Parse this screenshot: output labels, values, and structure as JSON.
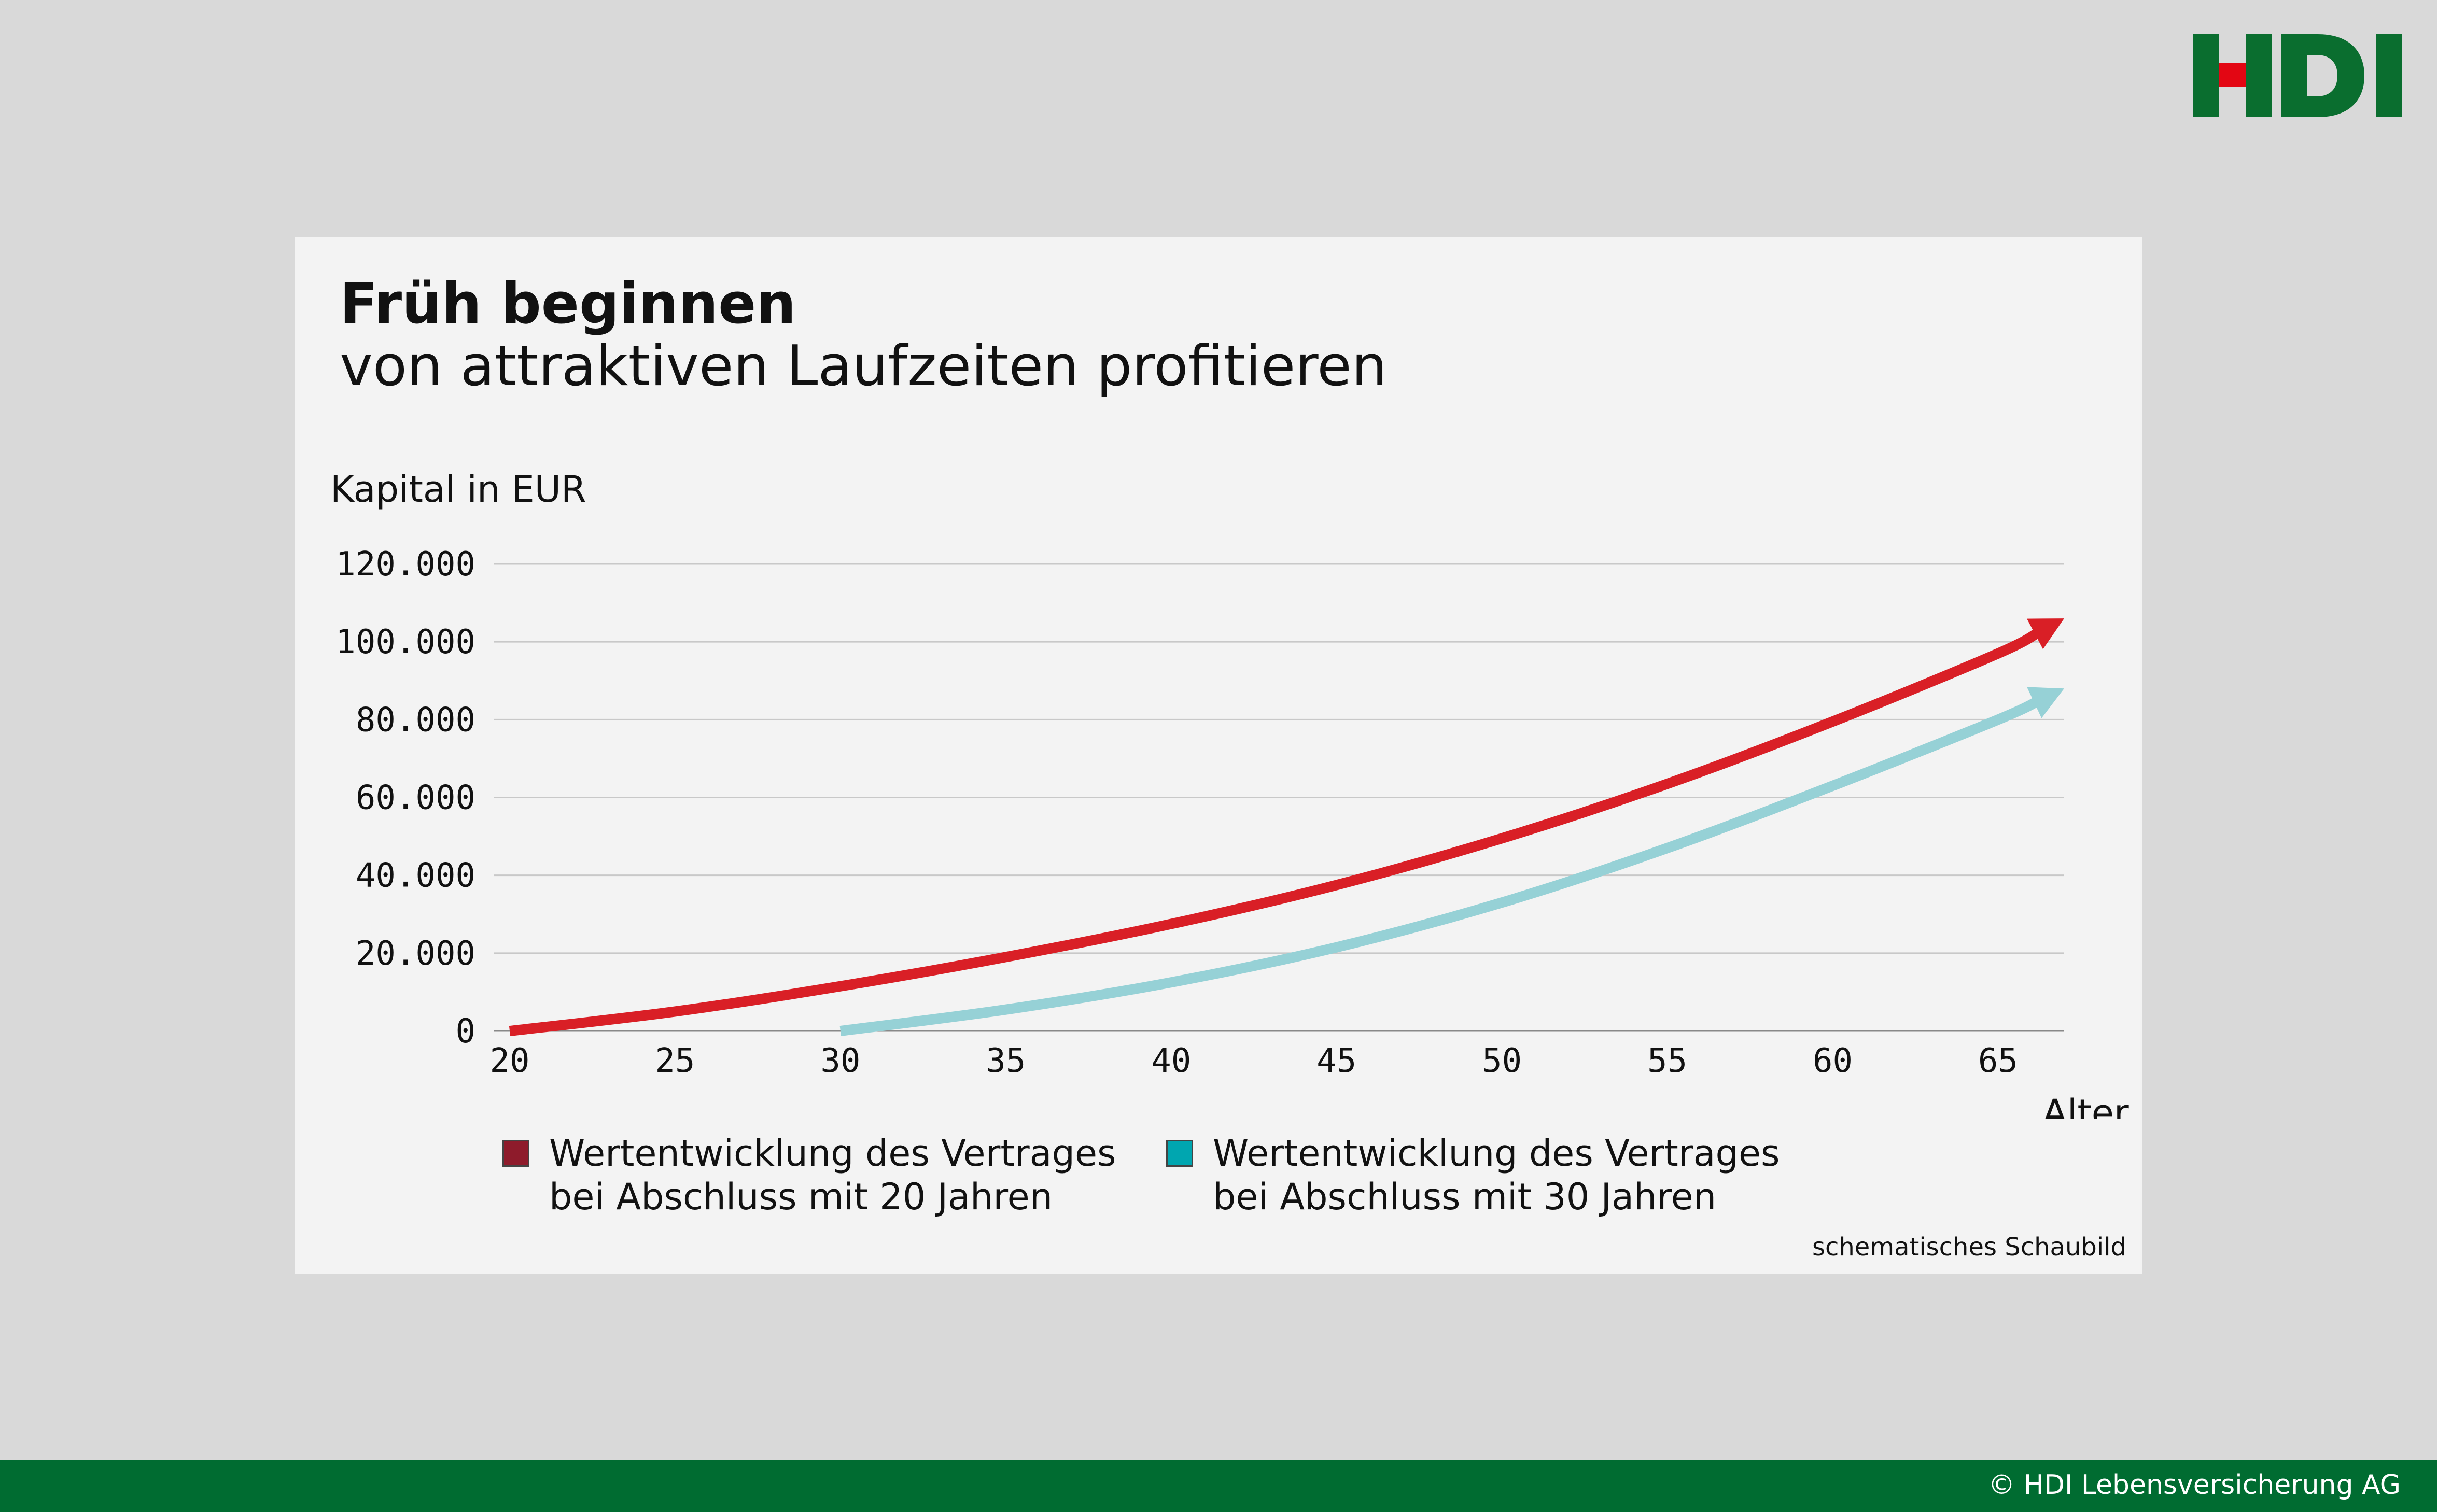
{
  "logo": {
    "text": "HDI",
    "colors": {
      "letters": "#0a6e2f",
      "accent": "#e30613"
    }
  },
  "card": {
    "title": "Früh beginnen",
    "subtitle": "von attraktiven Laufzeiten profitieren",
    "note": "schematisches Schaubild"
  },
  "chart_data": {
    "type": "line",
    "ylabel": "Kapital in EUR",
    "xlabel": "Alter",
    "xlim": [
      20,
      67
    ],
    "ylim": [
      0,
      120000
    ],
    "xticks": [
      "20",
      "25",
      "30",
      "35",
      "40",
      "45",
      "50",
      "55",
      "60",
      "65"
    ],
    "yticks": [
      "0",
      "20.000",
      "40.000",
      "60.000",
      "80.000",
      "100.000",
      "120.000"
    ],
    "grid": true,
    "series": [
      {
        "name": "Wertentwicklung des Vertrages bei Abschluss mit 20 Jahren",
        "label_lines": [
          "Wertentwicklung des Vertrages",
          "bei Abschluss mit 20 Jahren"
        ],
        "color": "#d91f26",
        "legend_color": "#8e1b2b",
        "x": [
          20,
          25,
          30,
          35,
          40,
          45,
          50,
          55,
          60,
          65,
          67
        ],
        "y": [
          0,
          5000,
          11500,
          19000,
          27500,
          37500,
          49500,
          63500,
          79500,
          97000,
          106000
        ]
      },
      {
        "name": "Wertentwicklung des Vertrages bei Abschluss mit 30 Jahren",
        "label_lines": [
          "Wertentwicklung des Vertrages",
          "bei Abschluss mit 30 Jahren"
        ],
        "color": "#96d1d6",
        "legend_color": "#00a6b0",
        "x": [
          30,
          35,
          40,
          45,
          50,
          55,
          60,
          65,
          67
        ],
        "y": [
          0,
          5500,
          12500,
          21500,
          33000,
          47000,
          63000,
          80000,
          88000
        ]
      }
    ]
  },
  "footer": {
    "copyright": "© HDI Lebensversicherung AG",
    "color": "#006c31"
  }
}
